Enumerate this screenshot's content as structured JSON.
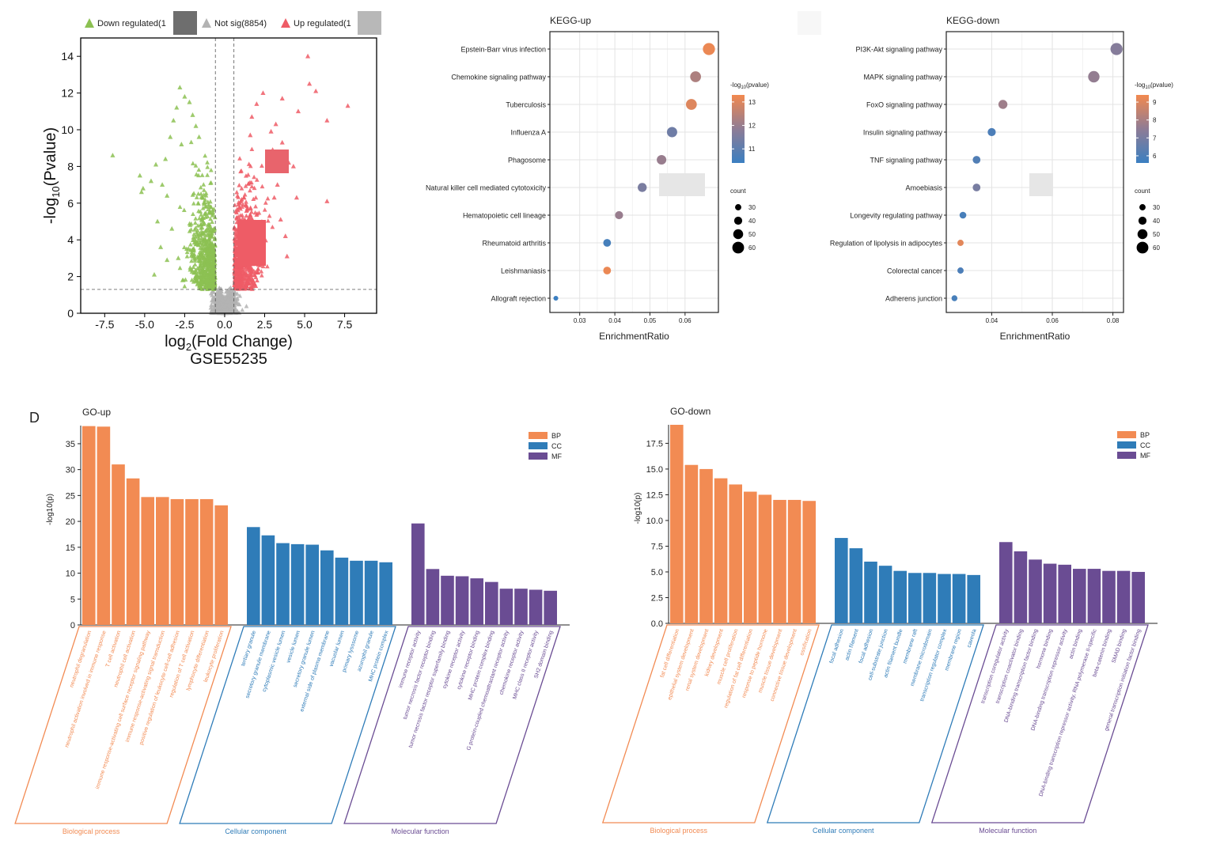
{
  "panel_label": "D",
  "colors": {
    "down": "#8cc152",
    "notsig": "#b3b3b3",
    "up": "#ee5c66",
    "bp": "#f28b53",
    "cc": "#2f7cb8",
    "mf": "#6a4c93",
    "grad_high": "#f2894f",
    "grad_mid": "#8e7c95",
    "grad_low": "#3b7fc1"
  },
  "chart_data": [
    {
      "id": "volcano",
      "type": "scatter",
      "title": "",
      "xlabel": "log2(Fold Change)",
      "ylabel": "-log10(Pvalue)",
      "caption": "GSE55235",
      "xlim": [
        -9,
        9.5
      ],
      "ylim": [
        0,
        15
      ],
      "xticks": [
        "-7.5",
        "-5.0",
        "-2.5",
        "0.0",
        "2.5",
        "5.0",
        "7.5"
      ],
      "yticks": [
        "0",
        "2",
        "4",
        "6",
        "8",
        "10",
        "12",
        "14"
      ],
      "legend": [
        "Down regulated(1",
        "Not sig(8854)",
        "Up regulated(1"
      ],
      "thresholds": {
        "x": [
          -0.58,
          0.58
        ],
        "y": 1.3
      },
      "outliers_down": [
        [
          -7,
          8.6
        ],
        [
          -5.3,
          7.5
        ],
        [
          -5.2,
          6.6
        ],
        [
          -5.1,
          6.8
        ],
        [
          -4.6,
          7.2
        ],
        [
          -4.3,
          8.1
        ],
        [
          -3.9,
          7.0
        ],
        [
          -3.7,
          8.4
        ],
        [
          -3.4,
          9.6
        ],
        [
          -3.2,
          10.5
        ],
        [
          -3.0,
          11.2
        ],
        [
          -2.8,
          12.3
        ],
        [
          -2.5,
          11.8
        ],
        [
          -2.2,
          11.5
        ],
        [
          -2.0,
          10.8
        ],
        [
          -1.8,
          10.2
        ],
        [
          -1.6,
          9.6
        ],
        [
          -2.7,
          9.2
        ],
        [
          -3.6,
          6.4
        ],
        [
          -4.2,
          5.0
        ],
        [
          -4.0,
          3.6
        ],
        [
          -3.3,
          4.6
        ],
        [
          -3.6,
          2.9
        ],
        [
          -4.4,
          2.1
        ],
        [
          -2.9,
          3.0
        ]
      ],
      "outliers_up": [
        [
          5.2,
          14.0
        ],
        [
          5.3,
          12.5
        ],
        [
          5.7,
          12.1
        ],
        [
          7.7,
          11.3
        ],
        [
          6.4,
          10.5
        ],
        [
          6.4,
          6.1
        ],
        [
          4.5,
          6.3
        ],
        [
          4.3,
          8.0
        ],
        [
          4.6,
          11.0
        ],
        [
          3.6,
          11.7
        ],
        [
          3.2,
          10.3
        ],
        [
          2.4,
          12.0
        ],
        [
          2.0,
          11.4
        ],
        [
          1.7,
          10.7
        ],
        [
          1.6,
          9.7
        ],
        [
          2.9,
          9.9
        ],
        [
          3.0,
          8.9
        ],
        [
          3.6,
          9.3
        ],
        [
          3.1,
          6.3
        ],
        [
          3.9,
          3.1
        ],
        [
          3.5,
          5.1
        ],
        [
          3.8,
          4.2
        ],
        [
          4.0,
          8.2
        ],
        [
          3.3,
          7.0
        ]
      ]
    },
    {
      "id": "kegg-up",
      "type": "scatter",
      "title": "KEGG-up",
      "xlabel": "EnrichmentRatio",
      "xlim": [
        0.0215,
        0.0695
      ],
      "xticks": [
        0.03,
        0.04,
        0.05,
        0.06
      ],
      "xtick_labels": [
        "0.03",
        "0.04",
        "0.05",
        "0.06"
      ],
      "categories": [
        "Epstein-Barr virus infection",
        "Chemokine signaling pathway",
        "Tuberculosis",
        "Influenza A",
        "Phagosome",
        "Natural killer cell mediated cytotoxicity",
        "Hematopoietic cell lineage",
        "Rheumatoid arthritis",
        "Leishmaniasis",
        "Allograft rejection"
      ],
      "x": [
        0.0668,
        0.063,
        0.0618,
        0.0563,
        0.0533,
        0.0478,
        0.0412,
        0.0378,
        0.0378,
        0.0232
      ],
      "count": [
        62,
        55,
        55,
        52,
        48,
        45,
        40,
        38,
        38,
        22
      ],
      "neglog10p": [
        13.2,
        12.3,
        13.0,
        11.3,
        12.0,
        11.5,
        12.0,
        10.6,
        13.2,
        10.4
      ],
      "color_legend_title": "-log10(pvalue)",
      "color_ticks": [
        11,
        12,
        13
      ],
      "color_range": [
        10.4,
        13.3
      ],
      "size_legend_title": "count",
      "size_ticks": [
        30,
        40,
        50,
        60
      ]
    },
    {
      "id": "kegg-down",
      "type": "scatter",
      "title": "KEGG-down",
      "xlabel": "EnrichmentRatio",
      "xlim": [
        0.025,
        0.0835
      ],
      "xticks": [
        0.04,
        0.06,
        0.08
      ],
      "xtick_labels": [
        "0.04",
        "0.06",
        "0.08"
      ],
      "categories": [
        "PI3K-Akt signaling pathway",
        "MAPK signaling pathway",
        "FoxO signaling pathway",
        "Insulin signaling pathway",
        "TNF signaling pathway",
        "Amoebiasis",
        "Longevity regulating pathway",
        "Regulation of lipolysis in adipocytes",
        "Colorectal cancer",
        "Adherens junction"
      ],
      "x": [
        0.0812,
        0.0737,
        0.0437,
        0.04,
        0.035,
        0.035,
        0.0305,
        0.0297,
        0.0297,
        0.0277
      ],
      "count": [
        62,
        58,
        45,
        40,
        38,
        38,
        33,
        30,
        30,
        28
      ],
      "neglog10p": [
        7.3,
        7.6,
        7.8,
        6.0,
        6.1,
        7.0,
        5.9,
        9.1,
        6.0,
        5.9
      ],
      "color_legend_title": "-log10(pvalue)",
      "color_ticks": [
        6,
        7,
        8,
        9
      ],
      "color_range": [
        5.6,
        9.4
      ],
      "size_legend_title": "count",
      "size_ticks": [
        30,
        40,
        50,
        60
      ]
    },
    {
      "id": "go-up",
      "type": "bar",
      "title": "GO-up",
      "ylabel": "-log10(p)",
      "ylim": [
        0,
        38.5
      ],
      "yticks": [
        0,
        5,
        10,
        15,
        20,
        25,
        30,
        35
      ],
      "legend": [
        "BP",
        "CC",
        "MF"
      ],
      "groups": [
        {
          "name": "Biological process",
          "key": "BP",
          "categories": [
            "neutrophil degranulation",
            "neutrophil activation involved in immune response",
            "T cell activation",
            "neutrophil cell activation",
            "immune response-activating cell surface receptor signaling pathway",
            "immune response-activating signal transduction",
            "positive regulation of leukocyte cell-cell adhesion",
            "regulation of T cell activation",
            "lymphocyte differentiation",
            "leukocyte proliferation"
          ],
          "values": [
            38.4,
            38.3,
            31,
            28.3,
            24.7,
            24.7,
            24.3,
            24.3,
            24.3,
            23.1
          ]
        },
        {
          "name": "Cellular component",
          "key": "CC",
          "categories": [
            "tertiary granule",
            "secretory granule membrane",
            "cytoplasmic vesicle lumen",
            "vesicle lumen",
            "secretory granule lumen",
            "external side of plasma membrane",
            "vacuolar lumen",
            "primary lysosome",
            "azurophil granule",
            "MHC protein complex"
          ],
          "values": [
            18.9,
            17.3,
            15.8,
            15.6,
            15.5,
            14.4,
            13.0,
            12.4,
            12.4,
            12.1
          ]
        },
        {
          "name": "Molecular function",
          "key": "MF",
          "categories": [
            "immune receptor activity",
            "tumor necrosis factor receptor binding",
            "tumor necrosis factor receptor superfamily binding",
            "cytokine receptor activity",
            "cytokine receptor binding",
            "MHC protein complex binding",
            "G protein-coupled chemoattractant receptor activity",
            "chemokine receptor activity",
            "MHC class II receptor activity",
            "SH2 domain binding"
          ],
          "values": [
            19.6,
            10.8,
            9.5,
            9.4,
            9.0,
            8.3,
            7.0,
            7.0,
            6.8,
            6.6
          ]
        }
      ]
    },
    {
      "id": "go-down",
      "type": "bar",
      "title": "GO-down",
      "ylabel": "-log10(p)",
      "ylim": [
        0,
        19.3
      ],
      "yticks": [
        0.0,
        2.5,
        5.0,
        7.5,
        10.0,
        12.5,
        15.0,
        17.5
      ],
      "ytick_labels": [
        "0.0",
        "2.5",
        "5.0",
        "7.5",
        "10.0",
        "12.5",
        "15.0",
        "17.5"
      ],
      "legend": [
        "BP",
        "CC",
        "MF"
      ],
      "groups": [
        {
          "name": "Biological process",
          "key": "BP",
          "categories": [
            "fat cell differentiation",
            "epithelial system development",
            "renal system development",
            "kidney development",
            "muscle cell proliferation",
            "regulation of fat cell differentiation",
            "response to peptide hormone",
            "muscle tissue development",
            "connective tissue development",
            "ossification"
          ],
          "values": [
            19.3,
            15.4,
            15.0,
            14.1,
            13.5,
            12.8,
            12.5,
            12.0,
            12.0,
            11.9
          ]
        },
        {
          "name": "Cellular component",
          "key": "CC",
          "categories": [
            "focal adhesion",
            "actin filament",
            "focal adhesion",
            "cell-substrate junction",
            "actin filament bundle",
            "membrane raft",
            "membrane microdomain",
            "transcription regulator complex",
            "membrane region",
            "caveola"
          ],
          "values": [
            8.3,
            7.3,
            6.0,
            5.6,
            5.1,
            4.9,
            4.9,
            4.8,
            4.8,
            4.7
          ]
        },
        {
          "name": "Molecular function",
          "key": "MF",
          "categories": [
            "transcription coregulator activity",
            "transcription coactivator binding",
            "DNA-binding transcription factor binding",
            "hormone binding",
            "DNA-binding transcription repressor activity",
            "actin binding",
            "DNA-binding transcription repressor activity, RNA polymerase II-specific",
            "beta-catenin binding",
            "SMAD binding",
            "general transcription initiation factor binding"
          ],
          "values": [
            7.9,
            7.0,
            6.2,
            5.8,
            5.7,
            5.3,
            5.3,
            5.1,
            5.1,
            5.0
          ]
        }
      ]
    }
  ]
}
